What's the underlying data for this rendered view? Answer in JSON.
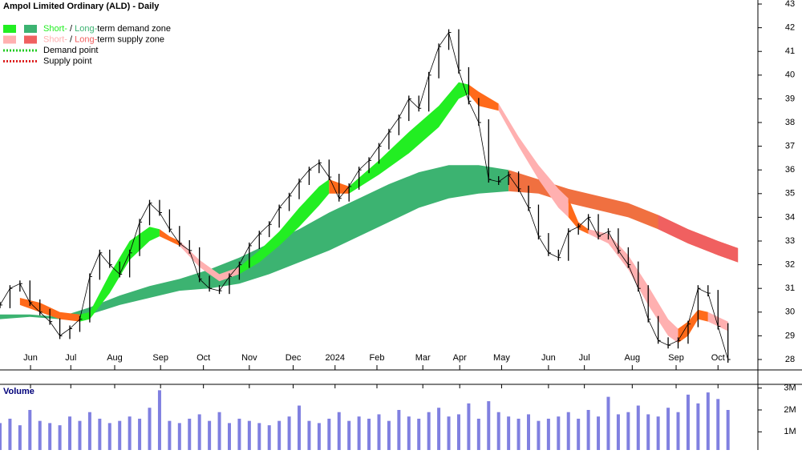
{
  "chart_data": {
    "type": "stock",
    "title": "Ampol Limited Ordinary (ALD) - Daily",
    "x": [
      0,
      1,
      2,
      3,
      4,
      5,
      6,
      7,
      8,
      9,
      10,
      11,
      12,
      13,
      14,
      15,
      16,
      17,
      18,
      19,
      20,
      21,
      22,
      23,
      24,
      25,
      26,
      27,
      28,
      29,
      30,
      31,
      32,
      33,
      34,
      35,
      36,
      37,
      38,
      39,
      40,
      41,
      42,
      43,
      44,
      45,
      46,
      47,
      48,
      49,
      50,
      51,
      52,
      53,
      54,
      55,
      56,
      57,
      58,
      59,
      60,
      61,
      62,
      63,
      64,
      65,
      66,
      67,
      68,
      69,
      70,
      71,
      72,
      73
    ],
    "values": [
      30.3,
      31.0,
      31.2,
      30.4,
      30.0,
      29.6,
      29.0,
      29.3,
      29.7,
      31.5,
      32.5,
      32.0,
      31.6,
      32.5,
      33.8,
      34.6,
      34.2,
      33.5,
      32.9,
      32.6,
      31.4,
      31.0,
      30.9,
      31.5,
      32.0,
      32.8,
      33.3,
      33.7,
      34.4,
      34.9,
      35.5,
      36.0,
      36.3,
      35.7,
      34.8,
      35.3,
      36.0,
      36.4,
      37.0,
      37.6,
      38.2,
      39.0,
      38.6,
      40.0,
      41.2,
      41.8,
      40.2,
      38.9,
      38.0,
      35.6,
      35.5,
      35.8,
      35.2,
      34.4,
      33.2,
      32.5,
      32.3,
      33.4,
      33.6,
      34.0,
      33.2,
      33.4,
      32.6,
      32.0,
      31.0,
      29.7,
      28.8,
      28.6,
      28.8,
      29.5,
      31.0,
      30.8,
      29.4,
      28.0
    ],
    "color": "#000000",
    "xlim": [
      0,
      76
    ],
    "xticks": [
      {
        "value": 3.06,
        "label": "Jun"
      },
      {
        "value": 7.1,
        "label": "Jul"
      },
      {
        "value": 11.5,
        "label": "Aug"
      },
      {
        "value": 16.1,
        "label": "Sep"
      },
      {
        "value": 20.4,
        "label": "Oct"
      },
      {
        "value": 25,
        "label": "Nov"
      },
      {
        "value": 29.4,
        "label": "Dec"
      },
      {
        "value": 33.6,
        "label": "2024"
      },
      {
        "value": 37.8,
        "label": "Feb"
      },
      {
        "value": 42.4,
        "label": "Mar"
      },
      {
        "value": 46.1,
        "label": "Apr"
      },
      {
        "value": 50.3,
        "label": "May"
      },
      {
        "value": 55,
        "label": "Jun"
      },
      {
        "value": 58.6,
        "label": "Jul"
      },
      {
        "value": 63.4,
        "label": "Aug"
      },
      {
        "value": 67.8,
        "label": "Sep"
      },
      {
        "value": 72,
        "label": "Oct"
      }
    ],
    "ylim": [
      27.56,
      43.17
    ],
    "yticks": [
      28,
      29,
      30,
      31,
      32,
      33,
      34,
      35,
      36,
      37,
      38,
      39,
      40,
      41,
      42,
      43
    ],
    "zones": [
      {
        "color": "#3cb371",
        "x": [
          0,
          3,
          6,
          9,
          12,
          15,
          18,
          21,
          24,
          27,
          30,
          33,
          36,
          39,
          42,
          45,
          48,
          51
        ],
        "upper": [
          29.9,
          29.9,
          29.8,
          30.2,
          30.7,
          31.1,
          31.4,
          31.8,
          32.3,
          32.9,
          33.5,
          34.2,
          34.8,
          35.4,
          35.9,
          36.2,
          36.2,
          36.0
        ],
        "lower": [
          29.7,
          29.8,
          29.7,
          29.9,
          30.3,
          30.6,
          30.9,
          31.0,
          31.2,
          31.6,
          32.1,
          32.6,
          33.2,
          33.8,
          34.4,
          34.8,
          35.0,
          35.1
        ]
      },
      {
        "color": "#f07040",
        "x": [
          51,
          54,
          57,
          60,
          63,
          66,
          69,
          72,
          74
        ],
        "upper": [
          36.0,
          35.6,
          35.2,
          34.9,
          34.6,
          34.1,
          33.5,
          33.0,
          32.7
        ],
        "lower": [
          35.1,
          35.0,
          34.6,
          34.3,
          34.0,
          33.5,
          32.9,
          32.4,
          32.1
        ]
      },
      {
        "color": "#f06060",
        "x": [
          66,
          69,
          72,
          74
        ],
        "upper": [
          34.1,
          33.5,
          33.0,
          32.7
        ],
        "lower": [
          33.5,
          32.9,
          32.4,
          32.1
        ]
      },
      {
        "color": "#ff6a1a",
        "x": [
          2,
          4,
          6,
          8
        ],
        "upper": [
          30.6,
          30.4,
          30.0,
          29.9
        ],
        "lower": [
          30.3,
          30.0,
          29.7,
          29.6
        ]
      },
      {
        "color": "#22ee22",
        "x": [
          8,
          9,
          11,
          13,
          15,
          16
        ],
        "upper": [
          29.9,
          30.0,
          31.6,
          33.0,
          33.6,
          33.5
        ],
        "lower": [
          29.6,
          29.7,
          30.8,
          32.2,
          33.0,
          33.2
        ]
      },
      {
        "color": "#ff6a1a",
        "x": [
          16,
          17,
          18
        ],
        "upper": [
          33.5,
          33.2,
          33.0
        ],
        "lower": [
          33.2,
          33.0,
          32.8
        ]
      },
      {
        "color": "#ffb0b0",
        "x": [
          18,
          20,
          22,
          24
        ],
        "upper": [
          33.0,
          32.2,
          31.6,
          31.9
        ],
        "lower": [
          32.8,
          31.9,
          31.3,
          31.6
        ]
      },
      {
        "color": "#22ee22",
        "x": [
          24,
          26,
          28,
          30,
          32,
          33
        ],
        "upper": [
          31.9,
          32.6,
          33.4,
          34.4,
          35.3,
          35.6
        ],
        "lower": [
          31.6,
          32.1,
          32.8,
          33.6,
          34.5,
          35.0
        ]
      },
      {
        "color": "#ff6a1a",
        "x": [
          33,
          35
        ],
        "upper": [
          35.6,
          35.3
        ],
        "lower": [
          35.0,
          35.0
        ]
      },
      {
        "color": "#22ee22",
        "x": [
          35,
          38,
          41,
          44,
          46,
          47
        ],
        "upper": [
          35.3,
          36.4,
          37.6,
          38.7,
          39.7,
          39.6
        ],
        "lower": [
          35.0,
          35.8,
          36.7,
          37.8,
          39.0,
          39.2
        ]
      },
      {
        "color": "#ff6a1a",
        "x": [
          47,
          48,
          50
        ],
        "upper": [
          39.6,
          39.3,
          38.8
        ],
        "lower": [
          39.2,
          38.7,
          38.5
        ]
      },
      {
        "color": "#ffb0b0",
        "x": [
          50,
          52,
          54,
          56,
          57
        ],
        "upper": [
          38.8,
          37.4,
          36.2,
          35.2,
          34.8
        ],
        "lower": [
          38.5,
          37.0,
          35.6,
          34.4,
          34.0
        ]
      },
      {
        "color": "#ff6a1a",
        "x": [
          57,
          58,
          59
        ],
        "upper": [
          34.8,
          33.8,
          33.5
        ],
        "lower": [
          34.0,
          33.5,
          33.3
        ]
      },
      {
        "color": "#ffb0b0",
        "x": [
          59,
          61,
          63,
          65,
          67,
          68
        ],
        "upper": [
          33.5,
          33.3,
          32.4,
          31.1,
          29.7,
          29.3
        ],
        "lower": [
          33.3,
          32.9,
          31.8,
          30.3,
          29.0,
          28.7
        ]
      },
      {
        "color": "#ff6a1a",
        "x": [
          68,
          69,
          70,
          71
        ],
        "upper": [
          29.3,
          29.6,
          30.1,
          30.0
        ],
        "lower": [
          28.7,
          29.0,
          29.7,
          29.6
        ]
      },
      {
        "color": "#ffb0b0",
        "x": [
          71,
          72,
          73
        ],
        "upper": [
          30.0,
          29.8,
          29.6
        ],
        "lower": [
          29.6,
          29.4,
          29.2
        ]
      }
    ],
    "legend": [
      {
        "parts": [
          "Short-",
          " / ",
          "Long-",
          "term demand zone"
        ],
        "colors": [
          "#22ee22",
          "#3cb371"
        ]
      },
      {
        "parts": [
          "Short-",
          " / ",
          "Long-",
          "term supply zone"
        ],
        "colors": [
          "#ffb0b0",
          "#f06060"
        ]
      },
      {
        "parts": [
          "Demand point"
        ],
        "colors": [
          "#22cc22"
        ]
      },
      {
        "parts": [
          "Supply point"
        ],
        "colors": [
          "#dd2222"
        ]
      }
    ],
    "volume": {
      "label": "Volume",
      "color": "#8080e0",
      "values": [
        1.4,
        1.6,
        1.3,
        2.0,
        1.5,
        1.4,
        1.3,
        1.7,
        1.5,
        1.9,
        1.6,
        1.4,
        1.5,
        1.7,
        1.6,
        2.1,
        2.9,
        1.5,
        1.4,
        1.6,
        1.8,
        1.5,
        1.9,
        1.4,
        1.6,
        1.5,
        1.4,
        1.3,
        1.5,
        1.7,
        2.2,
        1.5,
        1.4,
        1.6,
        1.9,
        1.5,
        1.7,
        1.6,
        1.8,
        1.5,
        2.0,
        1.7,
        1.6,
        1.9,
        2.1,
        1.7,
        1.8,
        2.3,
        1.6,
        2.4,
        1.9,
        1.7,
        1.6,
        1.8,
        1.5,
        1.6,
        1.7,
        1.9,
        1.6,
        2.0,
        1.7,
        2.6,
        1.8,
        1.9,
        2.2,
        1.8,
        1.7,
        2.1,
        1.9,
        2.7,
        2.3,
        2.8,
        2.5,
        2.0
      ],
      "ylim": [
        0.17,
        3.17
      ],
      "yticks": [
        {
          "value": 1,
          "label": "1M"
        },
        {
          "value": 2,
          "label": "2M"
        },
        {
          "value": 3,
          "label": "3M"
        }
      ]
    }
  }
}
